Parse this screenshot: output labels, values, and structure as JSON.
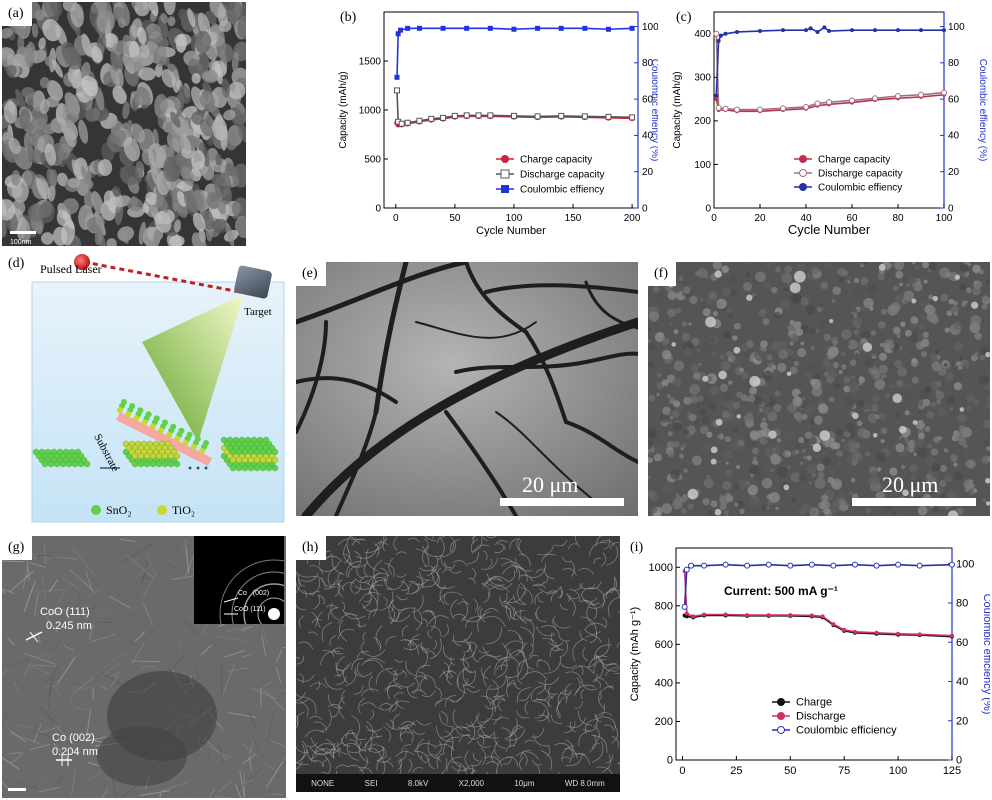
{
  "panels": {
    "a": {
      "label": "(a)",
      "scale": "100nm"
    },
    "b": {
      "label": "(b)"
    },
    "c": {
      "label": "(c)"
    },
    "d": {
      "label": "(d)",
      "laser": "Pulsed Laser",
      "target": "Target",
      "substrate": "Substrate",
      "legend": [
        {
          "name": "SnO₂",
          "color": "#5fd14a"
        },
        {
          "name": "TiO₂",
          "color": "#c8d63a"
        }
      ]
    },
    "e": {
      "label": "(e)",
      "scale": "20 μm"
    },
    "f": {
      "label": "(f)",
      "scale": "20 μm"
    },
    "g": {
      "label": "(g)",
      "ann1": "CoO (111)",
      "ann1v": "0.245 nm",
      "ann2": "Co (002)",
      "ann2v": "0.204 nm",
      "inset1": "Co   (002)",
      "inset2": "CoO (111)"
    },
    "h": {
      "label": "(h)",
      "footer": [
        "NONE",
        "SEI",
        "8.0kV",
        "X2,000",
        "10μm",
        "WD 8.0mm"
      ]
    },
    "i": {
      "label": "(i)",
      "annotation": "Current: 500 mA g⁻¹"
    }
  },
  "chart_data": [
    {
      "id": "b",
      "type": "line",
      "xlabel": "Cycle Number",
      "ylabel": "Capacity (mAh/g)",
      "y2label": "Coulombic effiency (%)",
      "xlim": [
        -10,
        205
      ],
      "ylim": [
        0,
        2000
      ],
      "y2lim": [
        0,
        108
      ],
      "xticks": [
        0,
        50,
        100,
        150,
        200
      ],
      "yticks": [
        0,
        500,
        1000,
        1500
      ],
      "y2ticks": [
        0,
        20,
        40,
        60,
        80,
        100
      ],
      "legend_position": "bottom-right",
      "series": [
        {
          "name": "Charge capacity",
          "axis": "left",
          "color": "#d0203a",
          "marker": "circle",
          "x": [
            1,
            2,
            5,
            10,
            20,
            30,
            40,
            50,
            60,
            70,
            80,
            100,
            120,
            140,
            160,
            180,
            200
          ],
          "y": [
            870,
            850,
            850,
            860,
            880,
            900,
            910,
            930,
            935,
            935,
            935,
            930,
            925,
            930,
            925,
            920,
            915
          ]
        },
        {
          "name": "Discharge capacity",
          "axis": "left",
          "color": "#555555",
          "marker": "open-square",
          "x": [
            1,
            2,
            5,
            10,
            20,
            30,
            40,
            50,
            60,
            70,
            80,
            100,
            120,
            140,
            160,
            180,
            200
          ],
          "y": [
            1200,
            880,
            860,
            870,
            890,
            910,
            920,
            940,
            945,
            945,
            945,
            940,
            935,
            940,
            935,
            930,
            925
          ]
        },
        {
          "name": "Coulombic effiency",
          "axis": "right",
          "color": "#2233dd",
          "marker": "square",
          "x": [
            1,
            2,
            4,
            10,
            20,
            40,
            60,
            80,
            100,
            120,
            140,
            160,
            180,
            200
          ],
          "y": [
            72,
            96,
            98,
            99,
            99,
            99,
            99,
            99,
            98.5,
            99,
            99,
            99,
            98.5,
            99
          ]
        }
      ]
    },
    {
      "id": "c",
      "type": "line",
      "xlabel": "Cycle Number",
      "ylabel": "Capacity (mAh/g)",
      "y2label": "Coulombic effiency (%)",
      "xlim": [
        0,
        100
      ],
      "ylim": [
        0,
        450
      ],
      "y2lim": [
        0,
        108
      ],
      "xticks": [
        0,
        20,
        40,
        60,
        80,
        100
      ],
      "yticks": [
        0,
        100,
        200,
        300,
        400
      ],
      "y2ticks": [
        0,
        20,
        40,
        60,
        80,
        100
      ],
      "legend_position": "bottom-right",
      "series": [
        {
          "name": "Charge capacity",
          "axis": "left",
          "color": "#c0304a",
          "marker": "dot",
          "x": [
            1,
            2,
            5,
            10,
            20,
            30,
            40,
            45,
            50,
            60,
            70,
            80,
            90,
            100
          ],
          "y": [
            250,
            225,
            225,
            222,
            222,
            225,
            228,
            235,
            238,
            242,
            248,
            252,
            255,
            260
          ]
        },
        {
          "name": "Discharge capacity",
          "axis": "left",
          "color": "#a07080",
          "marker": "open-circle",
          "x": [
            1,
            2,
            5,
            10,
            20,
            30,
            40,
            45,
            50,
            60,
            70,
            80,
            90,
            100
          ],
          "y": [
            400,
            230,
            228,
            226,
            226,
            229,
            232,
            240,
            243,
            247,
            252,
            257,
            260,
            265
          ]
        },
        {
          "name": "Coulombic effiency",
          "axis": "right",
          "color": "#2233aa",
          "marker": "dot",
          "x": [
            1,
            2,
            3,
            5,
            10,
            20,
            30,
            40,
            42,
            45,
            48,
            50,
            60,
            70,
            80,
            90,
            100
          ],
          "y": [
            62,
            92,
            95,
            96,
            97,
            97.5,
            98,
            98,
            99,
            97,
            99.5,
            97.5,
            98,
            98,
            98,
            98,
            98
          ]
        }
      ]
    },
    {
      "id": "i",
      "type": "line",
      "xlabel": "",
      "ylabel": "Capacity (mAh g⁻¹)",
      "y2label": "Coulombic efficiency (%)",
      "xlim": [
        -3,
        125
      ],
      "ylim": [
        0,
        1100
      ],
      "y2lim": [
        0,
        108
      ],
      "xticks": [
        0,
        25,
        50,
        75,
        100,
        125
      ],
      "yticks": [
        0,
        200,
        400,
        600,
        800,
        1000
      ],
      "y2ticks": [
        0,
        20,
        40,
        60,
        80,
        100
      ],
      "legend_position": "bottom-center",
      "series": [
        {
          "name": "Charge",
          "axis": "left",
          "color": "#111111",
          "marker": "dot",
          "x": [
            1,
            2,
            5,
            10,
            20,
            30,
            40,
            50,
            60,
            65,
            70,
            75,
            80,
            90,
            100,
            110,
            125
          ],
          "y": [
            750,
            745,
            740,
            750,
            750,
            748,
            748,
            748,
            745,
            740,
            700,
            670,
            660,
            655,
            650,
            648,
            640
          ]
        },
        {
          "name": "Discharge",
          "axis": "left",
          "color": "#d0306a",
          "marker": "dot",
          "x": [
            1,
            2,
            5,
            10,
            20,
            30,
            40,
            50,
            60,
            65,
            70,
            75,
            80,
            90,
            100,
            110,
            125
          ],
          "y": [
            980,
            760,
            745,
            755,
            755,
            752,
            752,
            752,
            750,
            745,
            705,
            675,
            665,
            660,
            655,
            652,
            645
          ]
        },
        {
          "name": "Coulombic efficiency",
          "axis": "right",
          "color": "#2233aa",
          "marker": "open-circle",
          "x": [
            1,
            2,
            4,
            10,
            20,
            30,
            40,
            50,
            60,
            70,
            80,
            90,
            100,
            110,
            125
          ],
          "y": [
            78,
            97,
            99,
            99,
            99.5,
            99,
            99.5,
            99,
            99.5,
            99,
            99.5,
            99,
            99.5,
            99,
            99.5
          ]
        }
      ]
    }
  ]
}
